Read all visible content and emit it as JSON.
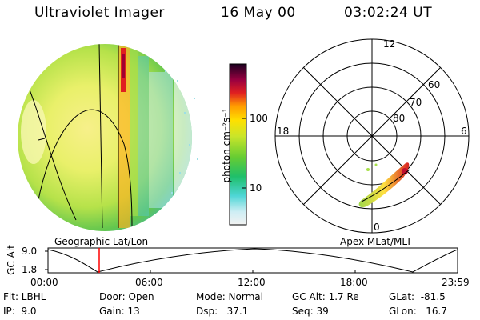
{
  "header": {
    "instrument": "Ultraviolet Imager",
    "date": "16 May 00",
    "time": "03:02:24 UT"
  },
  "colorbar": {
    "unit_label": "photon cm⁻²s⁻¹",
    "ticks": [
      "100",
      "10"
    ],
    "scale": "log"
  },
  "polar_plot": {
    "mlt_labels": [
      "12",
      "18",
      "6",
      "0"
    ],
    "lat_labels": [
      "60",
      "70",
      "80"
    ]
  },
  "panel_labels": {
    "left": "Geographic Lat/Lon",
    "right": "Apex MLat/MLT"
  },
  "timeline": {
    "ylabel": "GC Alt",
    "y_ticks": [
      "9.0",
      "1.8"
    ],
    "x_ticks": [
      "00:00",
      "06:00",
      "12:00",
      "18:00",
      "23:59"
    ],
    "marker_time": "03:02:24"
  },
  "info": {
    "flt": "Flt: LBHL",
    "ip": "IP:  9.0",
    "door": "Door: Open",
    "gain": "Gain: 13",
    "mode": "Mode: Normal",
    "dsp": "Dsp:   37.1",
    "gcalt": "GC Alt: 1.7 Re",
    "seq": "Seq: 39",
    "glat": "GLat:  -81.5",
    "glon": "GLon:   16.7"
  },
  "colors": {
    "background": "#ffffff",
    "marker": "#ff0000",
    "low": "#d6f0f5",
    "mid": "#8fd13a",
    "high": "#ffa500",
    "peak": "#b00020"
  }
}
